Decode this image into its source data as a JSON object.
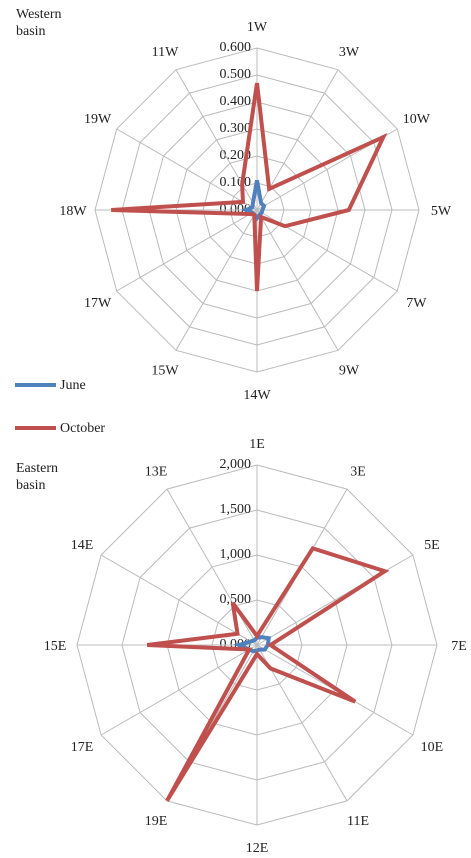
{
  "chart_data": [
    {
      "type": "radar",
      "title": "Western basin",
      "categories": [
        "1W",
        "3W",
        "10W",
        "5W",
        "7W",
        "9W",
        "14W",
        "15W",
        "17W",
        "18W",
        "19W",
        "11W"
      ],
      "series": [
        {
          "name": "June",
          "color": "#4f81bd",
          "values": [
            0.11,
            0.03,
            0.03,
            0.02,
            0.02,
            0.02,
            0.03,
            0.02,
            0.02,
            0.04,
            0.02,
            0.03
          ]
        },
        {
          "name": "October",
          "color": "#c0504d",
          "values": [
            0.47,
            0.09,
            0.54,
            0.34,
            0.12,
            0.03,
            0.3,
            0.02,
            0.03,
            0.54,
            0.06,
            0.11
          ]
        }
      ],
      "rlim": [
        0,
        0.6
      ],
      "rticks": [
        {
          "value": 0,
          "label": "0.000"
        },
        {
          "value": 0.1,
          "label": "0.100"
        },
        {
          "value": 0.2,
          "label": "0.200"
        },
        {
          "value": 0.3,
          "label": "0.300"
        },
        {
          "value": 0.4,
          "label": "0.400"
        },
        {
          "value": 0.5,
          "label": "0.500"
        },
        {
          "value": 0.6,
          "label": "0.600"
        }
      ],
      "grid": true
    },
    {
      "type": "radar",
      "title": "Eastern basin",
      "categories": [
        "1E",
        "3E",
        "5E",
        "7E",
        "10E",
        "11E",
        "12E",
        "19E",
        "17E",
        "15E",
        "14E",
        "13E"
      ],
      "series": [
        {
          "name": "June",
          "color": "#4f81bd",
          "values": [
            80,
            100,
            150,
            120,
            100,
            60,
            60,
            80,
            100,
            200,
            80,
            60
          ]
        },
        {
          "name": "October",
          "color": "#c0504d",
          "values": [
            100,
            1240,
            1640,
            150,
            1260,
            300,
            100,
            2000,
            100,
            1220,
            250,
            540
          ]
        }
      ],
      "rlim": [
        0,
        2000
      ],
      "rticks": [
        {
          "value": 0,
          "label": "0,000"
        },
        {
          "value": 500,
          "label": "0,500"
        },
        {
          "value": 1000,
          "label": "1,000"
        },
        {
          "value": 1500,
          "label": "1,500"
        },
        {
          "value": 2000,
          "label": "2,000"
        }
      ],
      "grid": true
    }
  ]
}
